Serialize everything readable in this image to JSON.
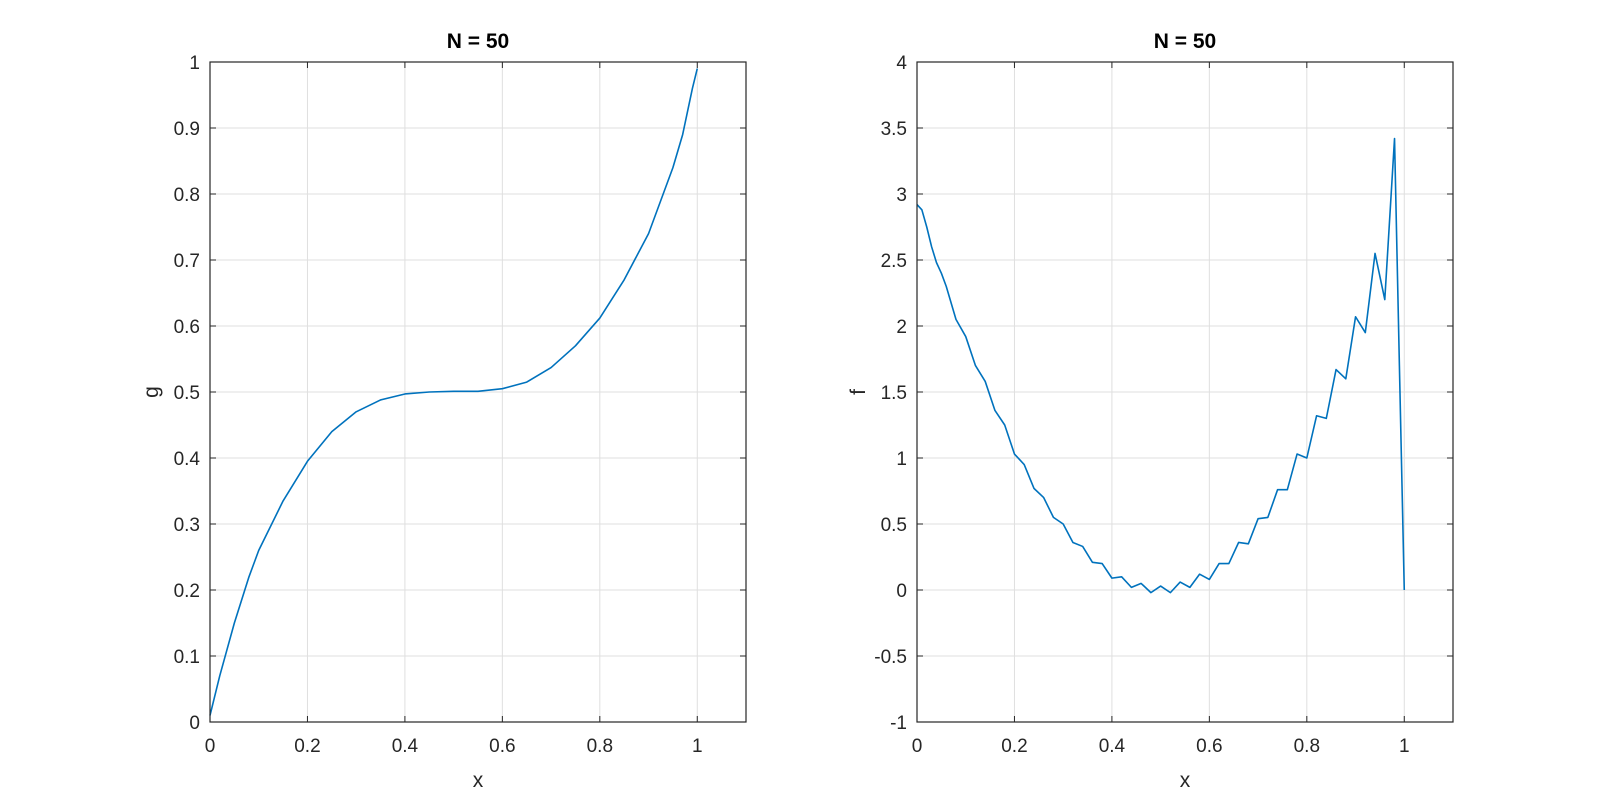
{
  "colors": {
    "series": "#0072bd",
    "grid": "#dfdfdf",
    "axes": "#262626"
  },
  "chart_data": [
    {
      "type": "line",
      "title": "N = 50",
      "xlabel": "x",
      "ylabel": "g",
      "xlim": [
        0,
        1.1
      ],
      "ylim": [
        0,
        1
      ],
      "grid": true,
      "xticks": [
        0,
        0.2,
        0.4,
        0.6,
        0.8,
        1
      ],
      "xtick_labels": [
        "0",
        "0.2",
        "0.4",
        "0.6",
        "0.8",
        "1"
      ],
      "yticks": [
        0,
        0.1,
        0.2,
        0.3,
        0.4,
        0.5,
        0.6,
        0.7,
        0.8,
        0.9,
        1
      ],
      "ytick_labels": [
        "0",
        "0.1",
        "0.2",
        "0.3",
        "0.4",
        "0.5",
        "0.6",
        "0.7",
        "0.8",
        "0.9",
        "1"
      ],
      "series": [
        {
          "x": [
            0,
            0.02,
            0.05,
            0.08,
            0.1,
            0.15,
            0.2,
            0.25,
            0.3,
            0.35,
            0.4,
            0.45,
            0.5,
            0.55,
            0.6,
            0.65,
            0.7,
            0.75,
            0.8,
            0.85,
            0.9,
            0.95,
            0.97,
            0.99,
            1
          ],
          "y": [
            0.01,
            0.07,
            0.15,
            0.22,
            0.26,
            0.335,
            0.395,
            0.44,
            0.47,
            0.488,
            0.497,
            0.5,
            0.501,
            0.501,
            0.505,
            0.515,
            0.537,
            0.57,
            0.612,
            0.67,
            0.74,
            0.84,
            0.89,
            0.96,
            0.99
          ]
        }
      ]
    },
    {
      "type": "line",
      "title": "N = 50",
      "xlabel": "x",
      "ylabel": "f",
      "xlim": [
        0,
        1.1
      ],
      "ylim": [
        -1,
        4
      ],
      "grid": true,
      "xticks": [
        0,
        0.2,
        0.4,
        0.6,
        0.8,
        1
      ],
      "xtick_labels": [
        "0",
        "0.2",
        "0.4",
        "0.6",
        "0.8",
        "1"
      ],
      "yticks": [
        -1,
        -0.5,
        0,
        0.5,
        1,
        1.5,
        2,
        2.5,
        3,
        3.5,
        4
      ],
      "ytick_labels": [
        "-1",
        "-0.5",
        "0",
        "0.5",
        "1",
        "1.5",
        "2",
        "2.5",
        "3",
        "3.5",
        "4"
      ],
      "series": [
        {
          "x": [
            0,
            0.01,
            0.02,
            0.03,
            0.04,
            0.05,
            0.06,
            0.08,
            0.1,
            0.12,
            0.14,
            0.16,
            0.18,
            0.2,
            0.22,
            0.24,
            0.26,
            0.28,
            0.3,
            0.32,
            0.34,
            0.36,
            0.38,
            0.4,
            0.42,
            0.44,
            0.46,
            0.48,
            0.5,
            0.52,
            0.54,
            0.56,
            0.58,
            0.6,
            0.62,
            0.64,
            0.66,
            0.68,
            0.7,
            0.72,
            0.74,
            0.76,
            0.78,
            0.8,
            0.82,
            0.84,
            0.86,
            0.88,
            0.9,
            0.92,
            0.94,
            0.96,
            0.98,
            0.99,
            1
          ],
          "y": [
            2.92,
            2.88,
            2.75,
            2.6,
            2.48,
            2.4,
            2.3,
            2.05,
            1.92,
            1.7,
            1.58,
            1.36,
            1.25,
            1.03,
            0.95,
            0.77,
            0.7,
            0.55,
            0.5,
            0.36,
            0.33,
            0.21,
            0.2,
            0.09,
            0.1,
            0.02,
            0.05,
            -0.02,
            0.03,
            -0.02,
            0.06,
            0.02,
            0.12,
            0.08,
            0.2,
            0.2,
            0.36,
            0.35,
            0.54,
            0.55,
            0.76,
            0.76,
            1.03,
            1.0,
            1.32,
            1.3,
            1.67,
            1.6,
            2.07,
            1.95,
            2.55,
            2.2,
            3.42,
            1.7,
            0.0
          ]
        }
      ]
    }
  ]
}
